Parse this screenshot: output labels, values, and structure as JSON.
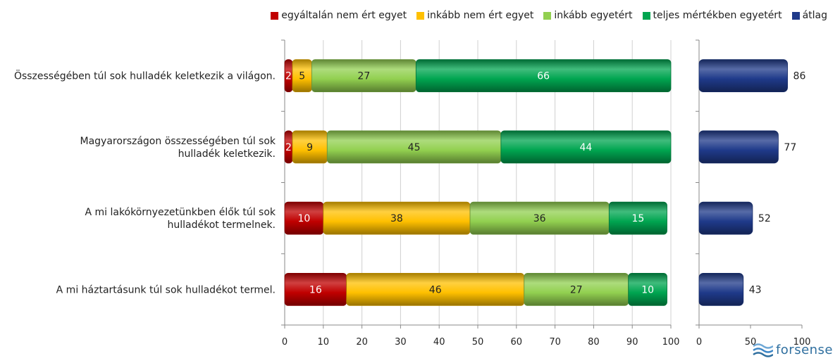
{
  "chart_data": [
    {
      "type": "bar",
      "orientation": "horizontal",
      "stacked": true,
      "categories": [
        "Összességében túl sok hulladék keletkezik a világon.",
        "Magyarországon összességében túl sok hulladék keletkezik.",
        "A mi lakókörnyezetünkben élők túl sok hulladékot termelnek.",
        "A mi háztartásunk túl sok hulladékot termel."
      ],
      "series": [
        {
          "name": "egyáltalán nem ért egyet",
          "color": "#c00000",
          "values": [
            2,
            2,
            10,
            16
          ]
        },
        {
          "name": "inkább nem ért egyet",
          "color": "#ffc000",
          "values": [
            5,
            9,
            38,
            46
          ]
        },
        {
          "name": "inkább egyetért",
          "color": "#92d050",
          "values": [
            27,
            45,
            36,
            27
          ]
        },
        {
          "name": "teljes mértékben egyetért",
          "color": "#00a550",
          "values": [
            66,
            44,
            15,
            10
          ]
        }
      ],
      "xlim": [
        0,
        100
      ],
      "xticks": [
        "0",
        "10",
        "20",
        "30",
        "40",
        "50",
        "60",
        "70",
        "80",
        "90",
        "100"
      ],
      "grid": true,
      "legend_position": "top-right"
    },
    {
      "type": "bar",
      "orientation": "horizontal",
      "categories": [
        "Összességében túl sok hulladék keletkezik a világon.",
        "Magyarországon összességében túl sok hulladék keletkezik.",
        "A mi lakókörnyezetünkben élők túl sok hulladékot termelnek.",
        "A mi háztartásunk túl sok hulladékot termel."
      ],
      "series": [
        {
          "name": "átlag",
          "color": "#1f3a8a",
          "values": [
            86,
            77,
            52,
            43
          ]
        }
      ],
      "xlim": [
        0,
        100
      ],
      "xticks": [
        "0",
        "50",
        "100"
      ],
      "grid": false
    }
  ],
  "logo": {
    "text": "forsense"
  }
}
